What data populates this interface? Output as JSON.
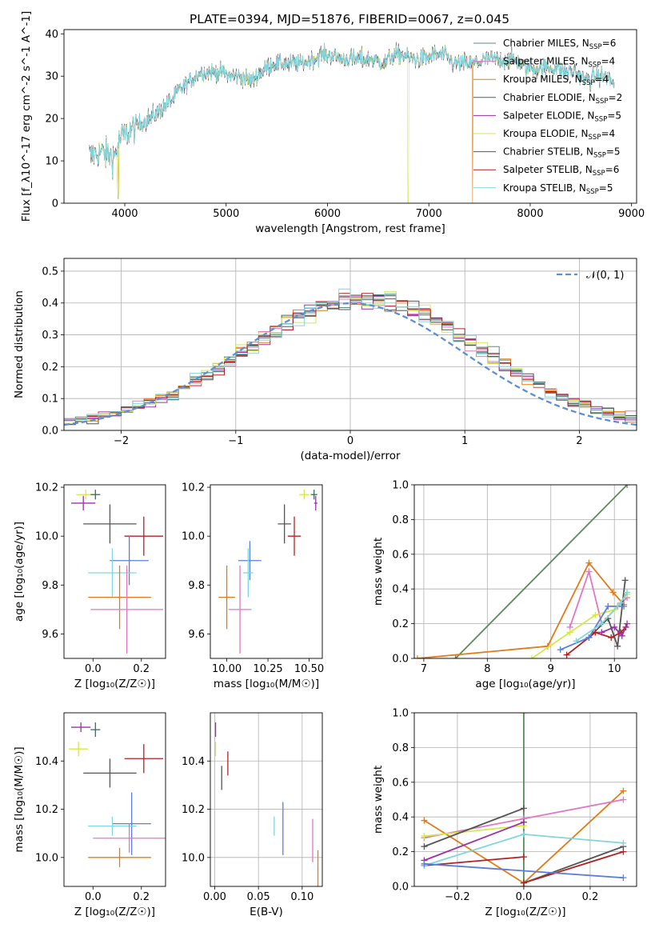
{
  "figure_title": "PLATE=0394, MJD=51876, FIBERID=0067, z=0.045",
  "colors": {
    "chabrier_miles": "#5b8c7a",
    "salpeter_miles": "#e377c2",
    "kroupa_miles": "#e07b1a",
    "chabrier_elodie": "#3a6e57",
    "salpeter_elodie": "#9b30a8",
    "kroupa_elodie": "#d4e84a",
    "chabrier_stelib": "#555555",
    "salpeter_stelib": "#b22222",
    "kroupa_stelib": "#7fd6dc",
    "gaussian": "#5b8fd6",
    "green_line": "#5c8a5c",
    "blue_line": "#5b7fd6"
  },
  "chart_data": [
    {
      "id": "spectrum",
      "type": "line",
      "xlabel": "wavelength [Angstrom, rest frame]",
      "ylabel": "Flux [f_λ10^-17 erg cm^-2 s^-1 A^-1]",
      "xlim": [
        3400,
        9050
      ],
      "ylim": [
        0,
        41
      ],
      "xticks": [
        4000,
        5000,
        6000,
        7000,
        8000,
        9000
      ],
      "yticks": [
        0,
        10,
        20,
        30,
        40
      ],
      "grid": false,
      "legend_position": "top-right",
      "legend": [
        {
          "label": "Chabrier MILES, N",
          "sub": "SSP",
          "suffix": "=6",
          "color_key": "chabrier_miles"
        },
        {
          "label": "Salpeter MILES, N",
          "sub": "SSP",
          "suffix": "=4",
          "color_key": "salpeter_miles"
        },
        {
          "label": "Kroupa MILES, N",
          "sub": "SSP",
          "suffix": "=4",
          "color_key": "kroupa_miles"
        },
        {
          "label": "Chabrier ELODIE, N",
          "sub": "SSP",
          "suffix": "=2",
          "color_key": "chabrier_elodie"
        },
        {
          "label": "Salpeter ELODIE, N",
          "sub": "SSP",
          "suffix": "=5",
          "color_key": "salpeter_elodie"
        },
        {
          "label": "Kroupa ELODIE, N",
          "sub": "SSP",
          "suffix": "=4",
          "color_key": "kroupa_elodie"
        },
        {
          "label": "Chabrier STELIB, N",
          "sub": "SSP",
          "suffix": "=5",
          "color_key": "chabrier_stelib"
        },
        {
          "label": "Salpeter STELIB, N",
          "sub": "SSP",
          "suffix": "=6",
          "color_key": "salpeter_stelib"
        },
        {
          "label": "Kroupa STELIB, N",
          "sub": "SSP",
          "suffix": "=5",
          "color_key": "kroupa_stelib"
        }
      ],
      "continuum": [
        [
          3650,
          11
        ],
        [
          3750,
          12
        ],
        [
          3900,
          11
        ],
        [
          3950,
          15
        ],
        [
          4050,
          17
        ],
        [
          4150,
          19
        ],
        [
          4250,
          20
        ],
        [
          4350,
          22
        ],
        [
          4450,
          24
        ],
        [
          4550,
          27
        ],
        [
          4650,
          29
        ],
        [
          4750,
          31
        ],
        [
          4850,
          31
        ],
        [
          4950,
          31
        ],
        [
          5050,
          30
        ],
        [
          5150,
          30
        ],
        [
          5250,
          29
        ],
        [
          5350,
          31
        ],
        [
          5450,
          33
        ],
        [
          5550,
          33
        ],
        [
          5650,
          33
        ],
        [
          5750,
          33
        ],
        [
          5850,
          34
        ],
        [
          5950,
          35
        ],
        [
          6050,
          35
        ],
        [
          6150,
          34
        ],
        [
          6250,
          34
        ],
        [
          6350,
          34
        ],
        [
          6450,
          34
        ],
        [
          6550,
          33
        ],
        [
          6650,
          35
        ],
        [
          6750,
          35
        ],
        [
          6850,
          34
        ],
        [
          6950,
          34
        ],
        [
          7050,
          35
        ],
        [
          7150,
          35
        ],
        [
          7250,
          33
        ],
        [
          7350,
          33
        ],
        [
          7450,
          33
        ],
        [
          7550,
          34
        ],
        [
          7650,
          34
        ],
        [
          7750,
          34
        ],
        [
          7850,
          34
        ],
        [
          7950,
          32
        ],
        [
          8050,
          32
        ],
        [
          8150,
          32
        ],
        [
          8250,
          32
        ],
        [
          8350,
          31
        ],
        [
          8450,
          31
        ],
        [
          8550,
          29
        ],
        [
          8650,
          30
        ],
        [
          8750,
          30
        ],
        [
          8830,
          28
        ]
      ],
      "dips": [
        [
          3935,
          1
        ],
        [
          6795,
          0
        ],
        [
          7430,
          0
        ]
      ]
    },
    {
      "id": "residuals",
      "type": "line",
      "xlabel": "(data-model)/error",
      "ylabel": "Normed distribution",
      "xlim": [
        -2.5,
        2.5
      ],
      "ylim": [
        0,
        0.54
      ],
      "xticks": [
        -2,
        -1,
        0,
        1,
        2
      ],
      "yticks": [
        0.0,
        0.1,
        0.2,
        0.3,
        0.4,
        0.5
      ],
      "grid": true,
      "legend_position": "top-right",
      "legend": [
        {
          "label": "𝒩(0, 1)",
          "color_key": "gaussian"
        }
      ]
    },
    {
      "id": "age_vs_Z",
      "type": "scatter",
      "xlabel": "Z [log₁₀(Z/Z☉)]",
      "ylabel": "age  [log₁₀(age/yr)]",
      "xlim": [
        -0.12,
        0.3
      ],
      "ylim": [
        9.5,
        10.21
      ],
      "xticks": [
        0.0,
        0.2
      ],
      "yticks": [
        9.6,
        9.8,
        10.0,
        10.2
      ],
      "grid": false,
      "points": [
        {
          "x": -0.03,
          "y": 10.17,
          "xerr": 0.04,
          "yerr": 0.02,
          "color_key": "kroupa_elodie"
        },
        {
          "x": 0.01,
          "y": 10.17,
          "xerr": 0.02,
          "yerr": 0.02,
          "color_key": "chabrier_elodie"
        },
        {
          "x": -0.04,
          "y": 10.135,
          "xerr": 0.05,
          "yerr": 0.03,
          "color_key": "salpeter_elodie"
        },
        {
          "x": 0.07,
          "y": 10.05,
          "xerr": 0.11,
          "yerr": 0.08,
          "color_key": "chabrier_stelib"
        },
        {
          "x": 0.21,
          "y": 10.0,
          "xerr": 0.08,
          "yerr": 0.08,
          "color_key": "salpeter_stelib"
        },
        {
          "x": 0.15,
          "y": 9.9,
          "xerr": 0.08,
          "yerr": 0.1,
          "color_key": "blue_line"
        },
        {
          "x": 0.08,
          "y": 9.85,
          "xerr": 0.1,
          "yerr": 0.1,
          "color_key": "kroupa_stelib"
        },
        {
          "x": 0.11,
          "y": 9.75,
          "xerr": 0.13,
          "yerr": 0.13,
          "color_key": "kroupa_miles"
        },
        {
          "x": 0.14,
          "y": 9.7,
          "xerr": 0.15,
          "yerr": 0.18,
          "color_key": "salpeter_miles"
        }
      ]
    },
    {
      "id": "age_vs_mass",
      "type": "scatter",
      "xlabel": "mass [log₁₀(M/M☉)]",
      "ylabel": "",
      "xlim": [
        9.9,
        10.58
      ],
      "ylim": [
        9.5,
        10.21
      ],
      "xticks": [
        10.0,
        10.25,
        10.5
      ],
      "yticks": [
        9.6,
        9.8,
        10.0,
        10.2
      ],
      "grid": false,
      "points": [
        {
          "x": 10.47,
          "y": 10.17,
          "xerr": 0.03,
          "yerr": 0.02,
          "color_key": "kroupa_elodie"
        },
        {
          "x": 10.53,
          "y": 10.17,
          "xerr": 0.02,
          "yerr": 0.02,
          "color_key": "chabrier_elodie"
        },
        {
          "x": 10.54,
          "y": 10.135,
          "xerr": 0.01,
          "yerr": 0.03,
          "color_key": "salpeter_elodie"
        },
        {
          "x": 10.35,
          "y": 10.05,
          "xerr": 0.04,
          "yerr": 0.08,
          "color_key": "chabrier_stelib"
        },
        {
          "x": 10.41,
          "y": 10.0,
          "xerr": 0.04,
          "yerr": 0.08,
          "color_key": "salpeter_stelib"
        },
        {
          "x": 10.14,
          "y": 9.9,
          "xerr": 0.07,
          "yerr": 0.08,
          "color_key": "blue_line"
        },
        {
          "x": 10.13,
          "y": 9.85,
          "xerr": 0.03,
          "yerr": 0.1,
          "color_key": "kroupa_stelib"
        },
        {
          "x": 10.0,
          "y": 9.75,
          "xerr": 0.05,
          "yerr": 0.13,
          "color_key": "kroupa_miles"
        },
        {
          "x": 10.08,
          "y": 9.7,
          "xerr": 0.07,
          "yerr": 0.18,
          "color_key": "salpeter_miles"
        }
      ]
    },
    {
      "id": "mass_weight_vs_age",
      "type": "line",
      "xlabel": "age  [log₁₀(age/yr)]",
      "ylabel": "mass weight",
      "xlim": [
        6.85,
        10.35
      ],
      "ylim": [
        0,
        1.0
      ],
      "xticks": [
        7,
        8,
        9,
        10
      ],
      "yticks": [
        0.0,
        0.2,
        0.4,
        0.6,
        0.8,
        1.0
      ],
      "grid": true,
      "series": [
        {
          "color_key": "green_line",
          "points": [
            [
              7.5,
              0.0
            ],
            [
              10.2,
              1.0
            ]
          ]
        },
        {
          "color_key": "kroupa_miles",
          "points": [
            [
              6.9,
              0.0
            ],
            [
              8.95,
              0.07
            ],
            [
              9.6,
              0.55
            ],
            [
              9.98,
              0.38
            ],
            [
              10.15,
              0.31
            ]
          ]
        },
        {
          "color_key": "salpeter_miles",
          "points": [
            [
              9.3,
              0.18
            ],
            [
              9.6,
              0.5
            ],
            [
              9.8,
              0.2
            ],
            [
              10.05,
              0.3
            ],
            [
              10.2,
              0.35
            ]
          ]
        },
        {
          "color_key": "kroupa_elodie",
          "points": [
            [
              8.7,
              0.0
            ],
            [
              9.3,
              0.15
            ],
            [
              9.7,
              0.25
            ],
            [
              10.0,
              0.28
            ],
            [
              10.2,
              0.37
            ]
          ]
        },
        {
          "color_key": "chabrier_stelib",
          "points": [
            [
              9.6,
              0.12
            ],
            [
              9.9,
              0.23
            ],
            [
              10.05,
              0.07
            ],
            [
              10.17,
              0.45
            ]
          ]
        },
        {
          "color_key": "salpeter_stelib",
          "points": [
            [
              9.25,
              0.02
            ],
            [
              9.7,
              0.15
            ],
            [
              9.95,
              0.12
            ],
            [
              10.1,
              0.15
            ],
            [
              10.18,
              0.18
            ]
          ]
        },
        {
          "color_key": "salpeter_elodie",
          "points": [
            [
              9.8,
              0.15
            ],
            [
              10.0,
              0.18
            ],
            [
              10.12,
              0.13
            ],
            [
              10.2,
              0.2
            ]
          ]
        },
        {
          "color_key": "blue_line",
          "points": [
            [
              9.15,
              0.05
            ],
            [
              9.6,
              0.12
            ],
            [
              9.9,
              0.3
            ],
            [
              10.15,
              0.3
            ]
          ]
        },
        {
          "color_key": "kroupa_stelib",
          "points": [
            [
              9.4,
              0.1
            ],
            [
              9.8,
              0.2
            ],
            [
              10.1,
              0.32
            ],
            [
              10.2,
              0.38
            ]
          ]
        }
      ]
    },
    {
      "id": "mass_vs_Z",
      "type": "scatter",
      "xlabel": "Z [log₁₀(Z/Z☉)]",
      "ylabel": "mass [log₁₀(M/M☉)]",
      "xlim": [
        -0.12,
        0.3
      ],
      "ylim": [
        9.88,
        10.6
      ],
      "xticks": [
        0.0,
        0.2
      ],
      "yticks": [
        10.0,
        10.2,
        10.4
      ],
      "grid": false,
      "points": [
        {
          "x": -0.05,
          "y": 10.54,
          "xerr": 0.04,
          "yerr": 0.02,
          "color_key": "salpeter_elodie"
        },
        {
          "x": 0.01,
          "y": 10.53,
          "xerr": 0.02,
          "yerr": 0.03,
          "color_key": "chabrier_elodie"
        },
        {
          "x": -0.06,
          "y": 10.45,
          "xerr": 0.04,
          "yerr": 0.03,
          "color_key": "kroupa_elodie"
        },
        {
          "x": 0.21,
          "y": 10.41,
          "xerr": 0.08,
          "yerr": 0.06,
          "color_key": "salpeter_stelib"
        },
        {
          "x": 0.07,
          "y": 10.35,
          "xerr": 0.11,
          "yerr": 0.06,
          "color_key": "chabrier_stelib"
        },
        {
          "x": 0.16,
          "y": 10.14,
          "xerr": 0.08,
          "yerr": 0.13,
          "color_key": "blue_line"
        },
        {
          "x": 0.08,
          "y": 10.13,
          "xerr": 0.1,
          "yerr": 0.04,
          "color_key": "kroupa_stelib"
        },
        {
          "x": 0.15,
          "y": 10.08,
          "xerr": 0.15,
          "yerr": 0.06,
          "color_key": "salpeter_miles"
        },
        {
          "x": 0.11,
          "y": 10.0,
          "xerr": 0.13,
          "yerr": 0.04,
          "color_key": "kroupa_miles"
        }
      ]
    },
    {
      "id": "mass_vs_ebv",
      "type": "scatter",
      "xlabel": "E(B-V)",
      "ylabel": "",
      "xlim": [
        -0.005,
        0.123
      ],
      "ylim": [
        9.88,
        10.6
      ],
      "xticks": [
        0.0,
        0.05,
        0.1
      ],
      "yticks": [
        10.0,
        10.2,
        10.4
      ],
      "grid": true,
      "points": [
        {
          "x": 0.001,
          "y": 10.53,
          "xerr": 0,
          "yerr": 0.03,
          "color_key": "salpeter_elodie"
        },
        {
          "x": 0.001,
          "y": 10.45,
          "xerr": 0,
          "yerr": 0.03,
          "color_key": "kroupa_elodie"
        },
        {
          "x": 0.008,
          "y": 10.33,
          "xerr": 0,
          "yerr": 0.05,
          "color_key": "chabrier_stelib"
        },
        {
          "x": 0.015,
          "y": 10.39,
          "xerr": 0,
          "yerr": 0.05,
          "color_key": "salpeter_stelib"
        },
        {
          "x": 0.068,
          "y": 10.13,
          "xerr": 0,
          "yerr": 0.04,
          "color_key": "kroupa_stelib"
        },
        {
          "x": 0.078,
          "y": 10.12,
          "xerr": 0,
          "yerr": 0.11,
          "color_key": "blue_line"
        },
        {
          "x": 0.112,
          "y": 10.07,
          "xerr": 0,
          "yerr": 0.09,
          "color_key": "salpeter_miles"
        },
        {
          "x": 0.118,
          "y": 9.95,
          "xerr": 0,
          "yerr": 0.08,
          "color_key": "kroupa_miles"
        }
      ]
    },
    {
      "id": "mass_weight_vs_Z",
      "type": "line",
      "xlabel": "Z [log₁₀(Z/Z☉)]",
      "ylabel": "mass weight",
      "xlim": [
        -0.33,
        0.34
      ],
      "ylim": [
        0,
        1.0
      ],
      "xticks": [
        -0.2,
        0.0,
        0.2
      ],
      "yticks": [
        0.0,
        0.2,
        0.4,
        0.6,
        0.8,
        1.0
      ],
      "grid": true,
      "series": [
        {
          "color_key": "green_line",
          "points": [
            [
              0.0,
              0.0
            ],
            [
              0.0,
              1.0
            ]
          ]
        },
        {
          "color_key": "kroupa_miles",
          "points": [
            [
              -0.3,
              0.38
            ],
            [
              0.0,
              0.02
            ],
            [
              0.3,
              0.55
            ]
          ]
        },
        {
          "color_key": "salpeter_miles",
          "points": [
            [
              -0.3,
              0.28
            ],
            [
              0.0,
              0.39
            ],
            [
              0.3,
              0.5
            ]
          ]
        },
        {
          "color_key": "kroupa_elodie",
          "points": [
            [
              -0.3,
              0.29
            ],
            [
              0.0,
              0.35
            ]
          ]
        },
        {
          "color_key": "chabrier_stelib",
          "points": [
            [
              -0.3,
              0.23
            ],
            [
              0.0,
              0.45
            ]
          ]
        },
        {
          "color_key": "chabrier_stelib",
          "points": [
            [
              0.0,
              0.02
            ],
            [
              0.3,
              0.23
            ]
          ]
        },
        {
          "color_key": "salpeter_elodie",
          "points": [
            [
              -0.3,
              0.15
            ],
            [
              0.0,
              0.37
            ]
          ]
        },
        {
          "color_key": "salpeter_stelib",
          "points": [
            [
              -0.3,
              0.12
            ],
            [
              0.0,
              0.17
            ]
          ]
        },
        {
          "color_key": "salpeter_stelib",
          "points": [
            [
              0.0,
              0.02
            ],
            [
              0.3,
              0.2
            ]
          ]
        },
        {
          "color_key": "kroupa_stelib",
          "points": [
            [
              -0.3,
              0.12
            ],
            [
              0.0,
              0.3
            ],
            [
              0.3,
              0.25
            ]
          ]
        },
        {
          "color_key": "blue_line",
          "points": [
            [
              -0.3,
              0.13
            ],
            [
              0.3,
              0.05
            ]
          ]
        }
      ]
    }
  ]
}
